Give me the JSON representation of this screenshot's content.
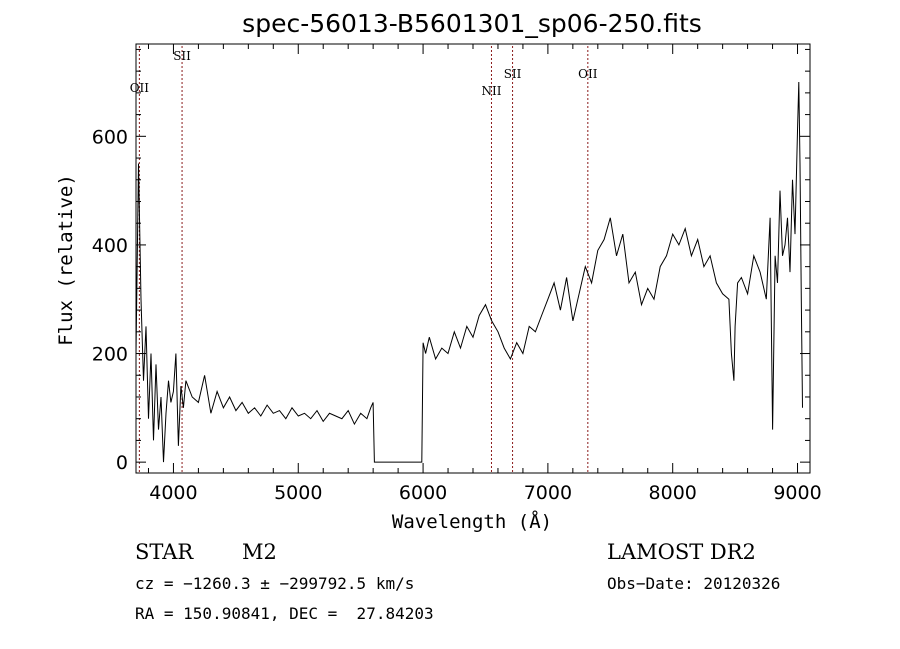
{
  "chart_data": {
    "type": "line",
    "title": "spec-56013-B5601301_sp06-250.fits",
    "xlabel": "Wavelength (Å)",
    "ylabel": "Flux (relative)",
    "xlim": [
      3700,
      9100
    ],
    "ylim": [
      -20,
      770
    ],
    "xticks": [
      4000,
      5000,
      6000,
      7000,
      8000,
      9000
    ],
    "yticks": [
      0,
      200,
      400,
      600
    ],
    "series": [
      {
        "x": [
          3700,
          3720,
          3740,
          3760,
          3780,
          3800,
          3820,
          3840,
          3860,
          3880,
          3900,
          3920,
          3940,
          3960,
          3980,
          4000,
          4020,
          4040,
          4060,
          4080,
          4100,
          4150,
          4200,
          4250,
          4300,
          4350,
          4400,
          4450,
          4500,
          4550,
          4600,
          4650,
          4700,
          4750,
          4800,
          4850,
          4900,
          4950,
          5000,
          5050,
          5100,
          5150,
          5200,
          5250,
          5300,
          5350,
          5400,
          5450,
          5500,
          5550,
          5580,
          5600,
          5610,
          5800,
          5990,
          6000,
          6020,
          6050,
          6100,
          6150,
          6200,
          6250,
          6300,
          6350,
          6400,
          6450,
          6500,
          6550,
          6600,
          6650,
          6700,
          6750,
          6800,
          6850,
          6900,
          6950,
          7000,
          7050,
          7100,
          7150,
          7200,
          7250,
          7300,
          7350,
          7400,
          7450,
          7500,
          7550,
          7600,
          7650,
          7700,
          7750,
          7800,
          7850,
          7900,
          7950,
          8000,
          8050,
          8100,
          8150,
          8200,
          8250,
          8300,
          8350,
          8400,
          8450,
          8470,
          8490,
          8500,
          8520,
          8550,
          8600,
          8650,
          8700,
          8750,
          8780,
          8800,
          8820,
          8840,
          8860,
          8880,
          8900,
          8920,
          8940,
          8960,
          8980,
          9000,
          9010,
          9020,
          9030,
          9040
        ],
        "values": [
          200,
          550,
          300,
          150,
          250,
          80,
          200,
          40,
          180,
          60,
          120,
          0,
          90,
          150,
          110,
          130,
          200,
          30,
          140,
          100,
          150,
          120,
          110,
          160,
          90,
          130,
          100,
          120,
          95,
          110,
          90,
          100,
          85,
          105,
          90,
          95,
          80,
          100,
          85,
          90,
          80,
          95,
          75,
          90,
          85,
          80,
          95,
          70,
          90,
          80,
          100,
          110,
          0,
          0,
          0,
          220,
          200,
          230,
          190,
          210,
          200,
          240,
          210,
          250,
          230,
          270,
          290,
          260,
          240,
          210,
          190,
          220,
          200,
          250,
          240,
          270,
          300,
          330,
          280,
          340,
          260,
          310,
          360,
          330,
          390,
          410,
          450,
          380,
          420,
          330,
          350,
          290,
          320,
          300,
          360,
          380,
          420,
          400,
          430,
          380,
          410,
          360,
          380,
          330,
          310,
          300,
          200,
          150,
          250,
          330,
          340,
          310,
          380,
          350,
          300,
          450,
          60,
          380,
          330,
          500,
          380,
          400,
          450,
          350,
          520,
          420,
          610,
          700,
          550,
          300,
          100
        ],
        "color": "#000000"
      }
    ],
    "reference_lines": [
      {
        "label": "OII",
        "x": 3727
      },
      {
        "label": "SII",
        "x": 4069
      },
      {
        "label": "NII",
        "x": 6548
      },
      {
        "label": "SII",
        "x": 6717
      },
      {
        "label": "OII",
        "x": 7320
      }
    ],
    "reference_line_color": "#8b1a1a",
    "grid": false
  },
  "info": {
    "object_type": "STAR",
    "subclass": "M2",
    "survey": "LAMOST DR2",
    "cz": "cz = −1260.3 ± −299792.5 km/s",
    "obs_date": "Obs−Date: 20120326",
    "radec": "RA = 150.90841, DEC =  27.84203"
  }
}
